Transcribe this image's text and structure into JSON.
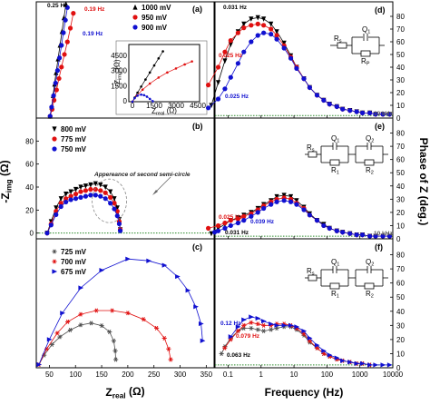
{
  "chart_data": [
    {
      "panel": "(a)",
      "type": "scatter",
      "xlim": [
        0,
        360
      ],
      "ylim": [
        0,
        100
      ],
      "series": [
        {
          "name": "1000 mV",
          "color": "#000000",
          "marker": "triangle-up",
          "x": [
            28,
            31,
            34,
            37,
            40,
            44,
            48,
            52,
            56,
            60
          ],
          "y": [
            0,
            8,
            18,
            28,
            38,
            50,
            62,
            74,
            86,
            98
          ]
        },
        {
          "name": "950 mV",
          "color": "#e01010",
          "marker": "circle",
          "x": [
            28,
            32,
            36,
            41,
            46,
            51,
            57,
            63,
            69,
            75
          ],
          "y": [
            0,
            6,
            14,
            23,
            33,
            43,
            54,
            65,
            77,
            90
          ]
        },
        {
          "name": "900 mV",
          "color": "#1010d0",
          "marker": "circle",
          "x": [
            28,
            31,
            35,
            39,
            43,
            47,
            51,
            55,
            59,
            63
          ],
          "y": [
            0,
            8,
            18,
            29,
            40,
            51,
            62,
            73,
            84,
            95
          ]
        }
      ],
      "annotations": [
        {
          "text": "0.25 Hz",
          "color": "#000000",
          "x": 32,
          "y": 97
        },
        {
          "text": "0.19 Hz",
          "color": "#e01010",
          "x": 70,
          "y": 93
        },
        {
          "text": "0.19 Hz",
          "color": "#1010d0",
          "x": 67,
          "y": 74
        }
      ],
      "inset": {
        "xlabel": "Z_real (Ω)",
        "ylabel": "-Z_img (Ω)",
        "xticks": [
          "0",
          "1500",
          "3000",
          "4500"
        ],
        "yticks": [
          "0",
          "1500",
          "3000",
          "4500"
        ],
        "xlim": [
          0,
          4500
        ],
        "ylim": [
          0,
          5500
        ],
        "series": [
          {
            "color": "#000000",
            "x": [
              0,
              150,
              350,
              600,
              900,
              1200,
              1500,
              1800,
              2100
            ],
            "y": [
              0,
              400,
              900,
              1500,
              2200,
              2900,
              3600,
              4300,
              5000
            ]
          },
          {
            "color": "#e01010",
            "x": [
              0,
              300,
              700,
              1200,
              1800,
              2400,
              3000,
              3600,
              4100
            ],
            "y": [
              0,
              600,
              1200,
              1800,
              2400,
              2900,
              3300,
              3700,
              4000
            ]
          },
          {
            "color": "#1010d0",
            "x": [
              0,
              150,
              350,
              600,
              800,
              1000,
              1200,
              1400
            ],
            "y": [
              0,
              350,
              600,
              700,
              650,
              500,
              280,
              50
            ]
          }
        ]
      }
    },
    {
      "panel": "(b)",
      "type": "scatter",
      "xlim": [
        0,
        360
      ],
      "ylim": [
        -5,
        100
      ],
      "yticks": [
        0,
        20,
        40,
        60,
        80
      ],
      "series": [
        {
          "name": "800 mV",
          "color": "#000000",
          "marker": "triangle-down",
          "x": [
            22,
            30,
            40,
            50,
            60,
            70,
            80,
            90,
            100,
            110,
            120,
            130,
            140,
            150,
            158,
            164,
            168,
            170
          ],
          "y": [
            0,
            10,
            22,
            30,
            34,
            36,
            38,
            40,
            41,
            42,
            43,
            42,
            40,
            36,
            30,
            22,
            12,
            3
          ]
        },
        {
          "name": "775 mV",
          "color": "#e01010",
          "marker": "circle",
          "x": [
            22,
            30,
            40,
            50,
            60,
            70,
            80,
            90,
            100,
            110,
            120,
            130,
            140,
            150,
            158,
            164,
            168,
            170
          ],
          "y": [
            0,
            8,
            19,
            26,
            30,
            32,
            34,
            36,
            37,
            38,
            38,
            37,
            35,
            31,
            26,
            19,
            10,
            3
          ]
        },
        {
          "name": "750 mV",
          "color": "#1010d0",
          "marker": "circle",
          "x": [
            22,
            30,
            40,
            50,
            60,
            70,
            80,
            90,
            100,
            110,
            120,
            130,
            140,
            150,
            158,
            164,
            168,
            170
          ],
          "y": [
            0,
            7,
            16,
            23,
            27,
            29,
            30,
            31,
            32,
            33,
            33,
            32,
            30,
            26,
            21,
            15,
            8,
            2
          ]
        }
      ],
      "annotation": "Appereance of second semi-circle"
    },
    {
      "panel": "(c)",
      "type": "scatter",
      "xlim": [
        25,
        365
      ],
      "ylim": [
        -5,
        200
      ],
      "xticks": [
        50,
        100,
        150,
        200,
        250,
        300,
        350
      ],
      "xlabel": "Z_real (Ω)",
      "series": [
        {
          "name": "725 mV",
          "color": "#505050",
          "marker": "star",
          "x": [
            30,
            40,
            55,
            70,
            90,
            110,
            130,
            150,
            165,
            173,
            176,
            177
          ],
          "y": [
            0,
            15,
            32,
            44,
            55,
            63,
            66,
            62,
            52,
            38,
            22,
            8
          ]
        },
        {
          "name": "700 mV",
          "color": "#e01010",
          "marker": "star",
          "x": [
            30,
            45,
            65,
            85,
            110,
            140,
            170,
            200,
            230,
            255,
            270,
            278,
            282
          ],
          "y": [
            0,
            25,
            50,
            68,
            80,
            86,
            86,
            82,
            72,
            58,
            42,
            25,
            8
          ]
        },
        {
          "name": "675 mV",
          "color": "#1010d0",
          "marker": "triangle-right",
          "x": [
            30,
            50,
            75,
            110,
            150,
            200,
            240,
            270,
            295,
            315,
            330,
            340,
            343
          ],
          "y": [
            0,
            40,
            82,
            122,
            150,
            168,
            165,
            158,
            140,
            118,
            92,
            65,
            38
          ]
        }
      ]
    },
    {
      "panel": "(d)",
      "type": "line",
      "xscale": "log",
      "xlim": [
        0.04,
        10000
      ],
      "ylim": [
        0,
        90
      ],
      "yticks": [
        0,
        10,
        20,
        30,
        40,
        50,
        60,
        70,
        80
      ],
      "series": [
        {
          "color": "#000000",
          "marker": "triangle-down",
          "x": [
            0.031,
            0.05,
            0.08,
            0.12,
            0.2,
            0.3,
            0.5,
            0.8,
            1.2,
            2,
            3,
            5,
            8,
            12,
            20,
            30,
            50,
            80,
            120,
            200,
            300,
            500,
            800,
            1200,
            2000,
            3000,
            5000,
            8000
          ],
          "y": [
            10,
            28,
            45,
            58,
            68,
            74,
            78,
            79,
            78,
            74,
            68,
            59,
            49,
            40,
            31,
            24,
            18,
            14,
            11,
            9,
            7,
            6,
            5,
            4,
            4,
            3,
            3,
            3
          ]
        },
        {
          "color": "#e01010",
          "marker": "circle",
          "x": [
            0.025,
            0.05,
            0.08,
            0.12,
            0.2,
            0.3,
            0.5,
            0.8,
            1.2,
            2,
            3,
            5,
            8,
            12,
            20,
            30,
            50,
            80,
            120,
            200,
            300,
            500,
            800,
            1200,
            2000,
            3000,
            5000,
            8000
          ],
          "y": [
            26,
            40,
            52,
            61,
            67,
            71,
            73,
            74,
            73,
            70,
            65,
            57,
            48,
            40,
            31,
            24,
            18,
            14,
            11,
            9,
            7,
            6,
            5,
            4,
            4,
            3,
            3,
            3
          ]
        },
        {
          "color": "#1010d0",
          "marker": "circle",
          "x": [
            0.025,
            0.05,
            0.08,
            0.12,
            0.2,
            0.3,
            0.5,
            0.8,
            1.2,
            2,
            3,
            5,
            8,
            12,
            20,
            30,
            50,
            80,
            120,
            200,
            300,
            500,
            800,
            1200,
            2000,
            3000,
            5000,
            8000
          ],
          "y": [
            8,
            15,
            23,
            32,
            43,
            52,
            60,
            65,
            67,
            66,
            62,
            55,
            47,
            39,
            31,
            24,
            18,
            14,
            11,
            9,
            7,
            6,
            5,
            4,
            4,
            3,
            3,
            3
          ]
        }
      ],
      "annotations": [
        "0.031 Hz",
        "0.025 Hz",
        "0.025 Hz",
        "10 kHz"
      ],
      "circuit": [
        "R_s",
        "Q_1",
        "R_P"
      ]
    },
    {
      "panel": "(e)",
      "type": "line",
      "xscale": "log",
      "xlim": [
        0.04,
        10000
      ],
      "ylim": [
        0,
        90
      ],
      "yticks": [
        0,
        10,
        20,
        30,
        40,
        50,
        60,
        70,
        80
      ],
      "series": [
        {
          "color": "#000000",
          "marker": "triangle-down",
          "x": [
            0.031,
            0.05,
            0.08,
            0.12,
            0.2,
            0.3,
            0.5,
            0.8,
            1.2,
            2,
            3,
            5,
            8,
            12,
            20,
            30,
            50,
            80,
            120,
            200,
            300,
            500,
            800,
            1200,
            2000,
            3000,
            5000,
            8000
          ],
          "y": [
            4,
            8,
            11,
            14,
            16,
            18,
            20,
            23,
            26,
            29,
            32,
            33,
            32,
            29,
            24,
            19,
            14,
            11,
            8,
            6,
            5,
            4,
            3,
            3,
            2,
            2,
            2,
            2
          ]
        },
        {
          "color": "#e01010",
          "marker": "circle",
          "x": [
            0.025,
            0.05,
            0.08,
            0.12,
            0.2,
            0.3,
            0.5,
            0.8,
            1.2,
            2,
            3,
            5,
            8,
            12,
            20,
            30,
            50,
            80,
            120,
            200,
            300,
            500,
            800,
            1200,
            2000,
            3000,
            5000,
            8000
          ],
          "y": [
            8,
            10,
            12,
            14,
            15,
            17,
            19,
            22,
            25,
            28,
            30,
            31,
            30,
            27,
            23,
            18,
            14,
            10,
            8,
            6,
            5,
            4,
            3,
            3,
            2,
            2,
            2,
            2
          ]
        },
        {
          "color": "#1010d0",
          "marker": "circle",
          "x": [
            0.039,
            0.05,
            0.08,
            0.12,
            0.2,
            0.3,
            0.5,
            0.8,
            1.2,
            2,
            3,
            5,
            8,
            12,
            20,
            30,
            50,
            80,
            120,
            200,
            300,
            500,
            800,
            1200,
            2000,
            3000,
            5000,
            8000
          ],
          "y": [
            5,
            6,
            8,
            10,
            12,
            14,
            17,
            20,
            23,
            26,
            28,
            29,
            28,
            26,
            22,
            18,
            14,
            10,
            8,
            6,
            5,
            4,
            3,
            3,
            2,
            2,
            2,
            2
          ]
        }
      ],
      "annotations": [
        "0.025 Hz",
        "0.039 Hz",
        "0.031 Hz",
        "10 kHz"
      ],
      "circuit": [
        "R_s",
        "Q_1",
        "R_1",
        "Q_2",
        "R_2"
      ]
    },
    {
      "panel": "(f)",
      "type": "line",
      "xscale": "log",
      "xlim": [
        0.04,
        10000
      ],
      "ylim": [
        0,
        90
      ],
      "xticks": [
        0.1,
        1,
        10,
        100,
        1000,
        10000
      ],
      "yticks": [
        0,
        10,
        20,
        30,
        40,
        50,
        60,
        70,
        80
      ],
      "xlabel": "Frequency (Hz)",
      "series": [
        {
          "color": "#505050",
          "marker": "star",
          "x": [
            0.063,
            0.08,
            0.12,
            0.2,
            0.3,
            0.5,
            0.8,
            1.2,
            2,
            3,
            5,
            8,
            12,
            20,
            30,
            50,
            80,
            120,
            200,
            300,
            500,
            800,
            1200,
            2000
          ],
          "y": [
            10,
            15,
            21,
            26,
            28,
            28,
            27,
            26,
            27,
            28,
            29,
            29,
            27,
            23,
            18,
            14,
            10,
            8,
            6,
            5,
            4,
            3,
            3,
            2
          ]
        },
        {
          "color": "#e01010",
          "marker": "star",
          "x": [
            0.079,
            0.12,
            0.2,
            0.3,
            0.5,
            0.8,
            1.2,
            2,
            3,
            5,
            8,
            12,
            20,
            30,
            50,
            80,
            120,
            200,
            300,
            500,
            800,
            1200,
            2000
          ],
          "y": [
            14,
            20,
            26,
            30,
            32,
            31,
            30,
            30,
            31,
            31,
            30,
            28,
            24,
            19,
            14,
            10,
            8,
            6,
            5,
            4,
            3,
            3,
            2
          ]
        },
        {
          "color": "#1010d0",
          "marker": "triangle-right",
          "x": [
            0.12,
            0.2,
            0.3,
            0.5,
            0.8,
            1.2,
            2,
            3,
            5,
            8,
            12,
            20,
            30,
            50,
            80,
            120,
            200,
            300,
            500,
            800,
            1200,
            2000,
            3000,
            5000,
            8000
          ],
          "y": [
            22,
            29,
            34,
            36,
            35,
            33,
            31,
            30,
            30,
            30,
            29,
            26,
            21,
            16,
            12,
            9,
            7,
            5,
            4,
            3,
            3,
            2,
            2,
            2,
            2
          ]
        }
      ],
      "annotations": [
        "0.12 Hz",
        "0.079 Hz",
        "0.063 Hz"
      ],
      "circuit": [
        "R_s",
        "Q_1",
        "R_1",
        "Q_2",
        "R_2"
      ]
    }
  ],
  "labels": {
    "ylabel_left": "-Z_img (Ω)",
    "ylabel_right": "Phase of Z (deg.)",
    "xlabel_left": "Z_real (Ω)",
    "xlabel_right": "Frequency (Hz)"
  }
}
